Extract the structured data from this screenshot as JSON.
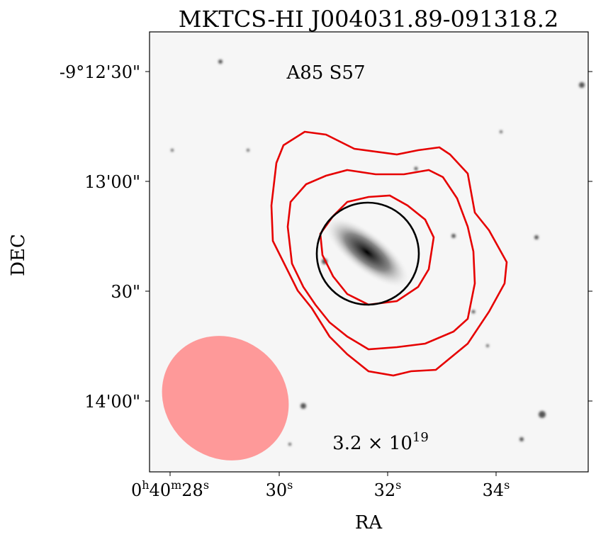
{
  "title": "MKTCS-HI J004031.89-091318.2",
  "annotation": "A85 S57",
  "column_density": {
    "base": "3.2 × 10",
    "exponent": "19"
  },
  "x_axis": {
    "label": "RA",
    "ticks": [
      [
        {
          "text": "0"
        },
        {
          "sup": "h"
        },
        {
          "text": "40"
        },
        {
          "sup": "m"
        },
        {
          "text": "28"
        },
        {
          "sup": "s"
        }
      ],
      [
        {
          "text": "30"
        },
        {
          "sup": "s"
        }
      ],
      [
        {
          "text": "32"
        },
        {
          "sup": "s"
        }
      ],
      [
        {
          "text": "34"
        },
        {
          "sup": "s"
        }
      ]
    ]
  },
  "y_axis": {
    "label": "DEC",
    "ticks": [
      "-9°12'30\"",
      "13'00\"",
      "30\"",
      "14'00\""
    ]
  }
}
